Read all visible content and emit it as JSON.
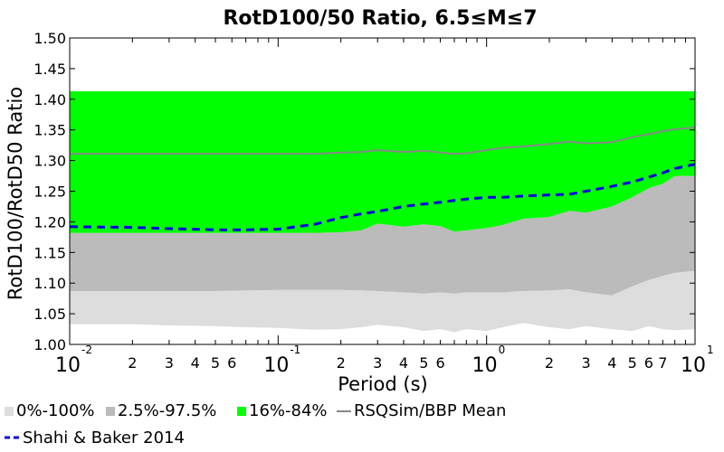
{
  "chart_data": {
    "type": "area",
    "title": "RotD100/50 Ratio, 6.5≤M≤7",
    "xlabel": "Period (s)",
    "ylabel": "RotD100/RotD50 Ratio",
    "x_scale": "log",
    "xlim": [
      0.01,
      10
    ],
    "ylim": [
      1.0,
      1.5
    ],
    "y_ticks": [
      "1.00",
      "1.05",
      "1.10",
      "1.15",
      "1.20",
      "1.25",
      "1.30",
      "1.35",
      "1.40",
      "1.45",
      "1.50"
    ],
    "x_major_ticks": [
      {
        "value": 0.01,
        "base": "10",
        "exp": "-2"
      },
      {
        "value": 0.1,
        "base": "10",
        "exp": "-1"
      },
      {
        "value": 1,
        "base": "10",
        "exp": "0"
      },
      {
        "value": 10,
        "base": "10",
        "exp": "1"
      }
    ],
    "x_minor_labels": [
      "2",
      "3",
      "4",
      "5",
      "6",
      "7"
    ],
    "grid": false,
    "legend": {
      "placement": "bottom",
      "entries": [
        {
          "label": "0%-100%",
          "type": "patch",
          "color": "#dddddd"
        },
        {
          "label": "2.5%-97.5%",
          "type": "patch",
          "color": "#bbbbbb"
        },
        {
          "label": "16%-84%",
          "type": "patch",
          "color": "#00ff00"
        },
        {
          "label": "RSQSim/BBP Mean",
          "type": "line",
          "color": "#888888"
        },
        {
          "label": "Shahi & Baker 2014",
          "type": "dashed",
          "color": "#0000dd"
        }
      ]
    },
    "x": [
      0.01,
      0.02,
      0.03,
      0.05,
      0.07,
      0.1,
      0.15,
      0.2,
      0.25,
      0.3,
      0.4,
      0.5,
      0.6,
      0.7,
      0.8,
      1.0,
      1.2,
      1.5,
      2.0,
      2.5,
      3.0,
      4.0,
      5.0,
      6.0,
      7.0,
      8.0,
      10.0
    ],
    "series": [
      {
        "name": "0%-100%",
        "color": "#dddddd",
        "lower": [
          1.033,
          1.033,
          1.031,
          1.03,
          1.028,
          1.027,
          1.024,
          1.025,
          1.028,
          1.032,
          1.028,
          1.022,
          1.025,
          1.02,
          1.025,
          1.022,
          1.028,
          1.035,
          1.028,
          1.025,
          1.03,
          1.025,
          1.022,
          1.03,
          1.025,
          1.023,
          1.025
        ],
        "upper": [
          1.087,
          1.087,
          1.087,
          1.087,
          1.088,
          1.089,
          1.089,
          1.089,
          1.088,
          1.087,
          1.085,
          1.083,
          1.085,
          1.083,
          1.085,
          1.085,
          1.085,
          1.087,
          1.088,
          1.09,
          1.085,
          1.08,
          1.095,
          1.105,
          1.112,
          1.117,
          1.12
        ]
      },
      {
        "name": "2.5%-97.5%",
        "color": "#bbbbbb",
        "lower": [
          1.087,
          1.087,
          1.087,
          1.087,
          1.088,
          1.089,
          1.089,
          1.089,
          1.088,
          1.087,
          1.085,
          1.083,
          1.085,
          1.083,
          1.085,
          1.085,
          1.085,
          1.087,
          1.088,
          1.09,
          1.085,
          1.08,
          1.095,
          1.105,
          1.112,
          1.117,
          1.12
        ],
        "upper": [
          1.182,
          1.182,
          1.182,
          1.182,
          1.182,
          1.182,
          1.182,
          1.183,
          1.186,
          1.197,
          1.192,
          1.196,
          1.193,
          1.184,
          1.186,
          1.19,
          1.195,
          1.205,
          1.208,
          1.218,
          1.215,
          1.225,
          1.24,
          1.255,
          1.262,
          1.275,
          1.275
        ]
      },
      {
        "name": "16%-84%",
        "color": "#00ff00",
        "lower": [
          1.182,
          1.182,
          1.182,
          1.182,
          1.182,
          1.182,
          1.182,
          1.183,
          1.186,
          1.197,
          1.192,
          1.196,
          1.193,
          1.184,
          1.186,
          1.19,
          1.195,
          1.205,
          1.208,
          1.218,
          1.215,
          1.225,
          1.24,
          1.255,
          1.262,
          1.275,
          1.275
        ],
        "upper": [
          1.413,
          1.413,
          1.413,
          1.413,
          1.413,
          1.413,
          1.413,
          1.413,
          1.413,
          1.413,
          1.413,
          1.413,
          1.413,
          1.413,
          1.413,
          1.413,
          1.413,
          1.413,
          1.413,
          1.413,
          1.413,
          1.413,
          1.413,
          1.413,
          1.413,
          1.413,
          1.413
        ]
      },
      {
        "name": "RSQSim/BBP Mean",
        "color": "#888888",
        "values": [
          1.311,
          1.311,
          1.311,
          1.311,
          1.311,
          1.311,
          1.311,
          1.313,
          1.314,
          1.317,
          1.314,
          1.316,
          1.313,
          1.311,
          1.312,
          1.317,
          1.321,
          1.323,
          1.327,
          1.331,
          1.328,
          1.33,
          1.338,
          1.343,
          1.348,
          1.351,
          1.354
        ]
      },
      {
        "name": "Shahi & Baker 2014",
        "color": "#0000dd",
        "values": [
          1.192,
          1.191,
          1.189,
          1.187,
          1.187,
          1.188,
          1.196,
          1.207,
          1.213,
          1.217,
          1.225,
          1.229,
          1.232,
          1.235,
          1.237,
          1.24,
          1.24,
          1.242,
          1.244,
          1.245,
          1.25,
          1.258,
          1.265,
          1.273,
          1.28,
          1.287,
          1.294
        ]
      }
    ]
  }
}
